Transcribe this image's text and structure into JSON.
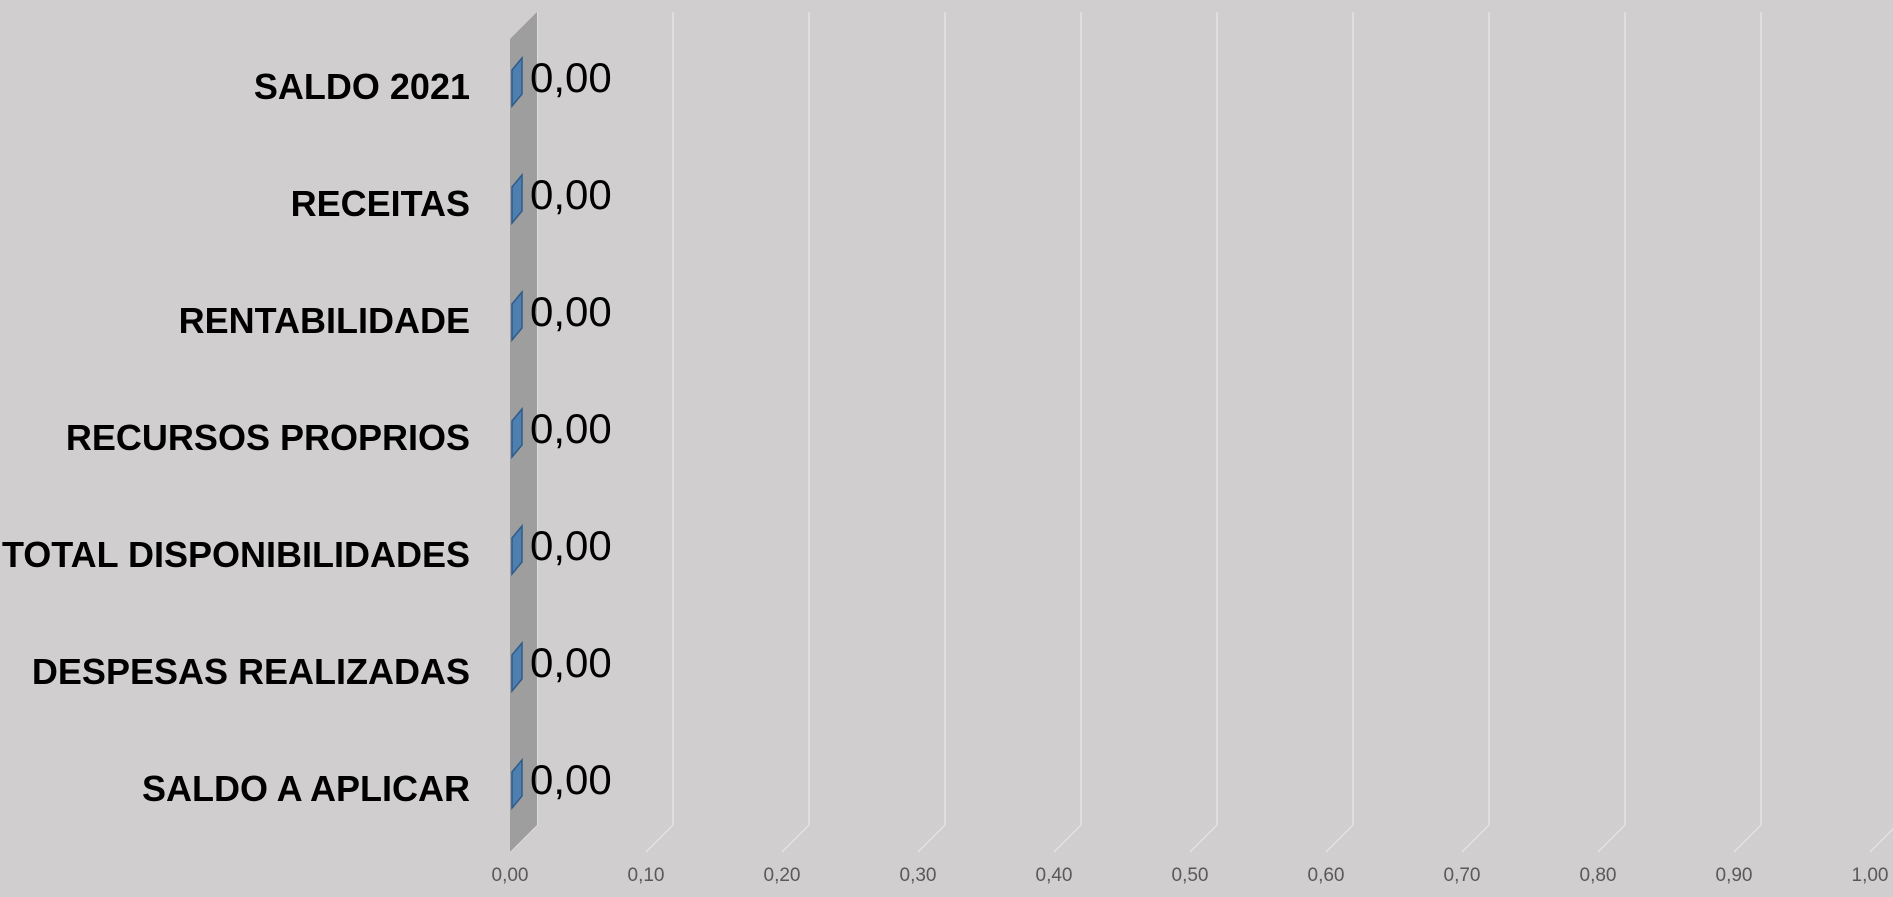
{
  "chart_data": {
    "type": "bar",
    "orientation": "horizontal",
    "three_d": true,
    "categories": [
      "SALDO 2021",
      "RECEITAS",
      "RENTABILIDADE",
      "RECURSOS PROPRIOS",
      "TOTAL DISPONIBILIDADES",
      "DESPESAS REALIZADAS",
      "SALDO A APLICAR"
    ],
    "values": [
      0,
      0,
      0,
      0,
      0,
      0,
      0
    ],
    "data_labels": [
      "0,00",
      "0,00",
      "0,00",
      "0,00",
      "0,00",
      "0,00",
      "0,00"
    ],
    "x_ticks": [
      "0,00",
      "0,10",
      "0,20",
      "0,30",
      "0,40",
      "0,50",
      "0,60",
      "0,70",
      "0,80",
      "0,90",
      "1,00"
    ],
    "xlim": [
      0,
      1
    ],
    "grid": true,
    "legend": "none",
    "colors": {
      "background": "#d0cece",
      "bar_face": "#4f7fae",
      "bar_side": "#2e5c8a",
      "wall": "#9e9e9e",
      "wall_top": "#b4b4b4",
      "gridline": "#e4e2e2"
    }
  }
}
